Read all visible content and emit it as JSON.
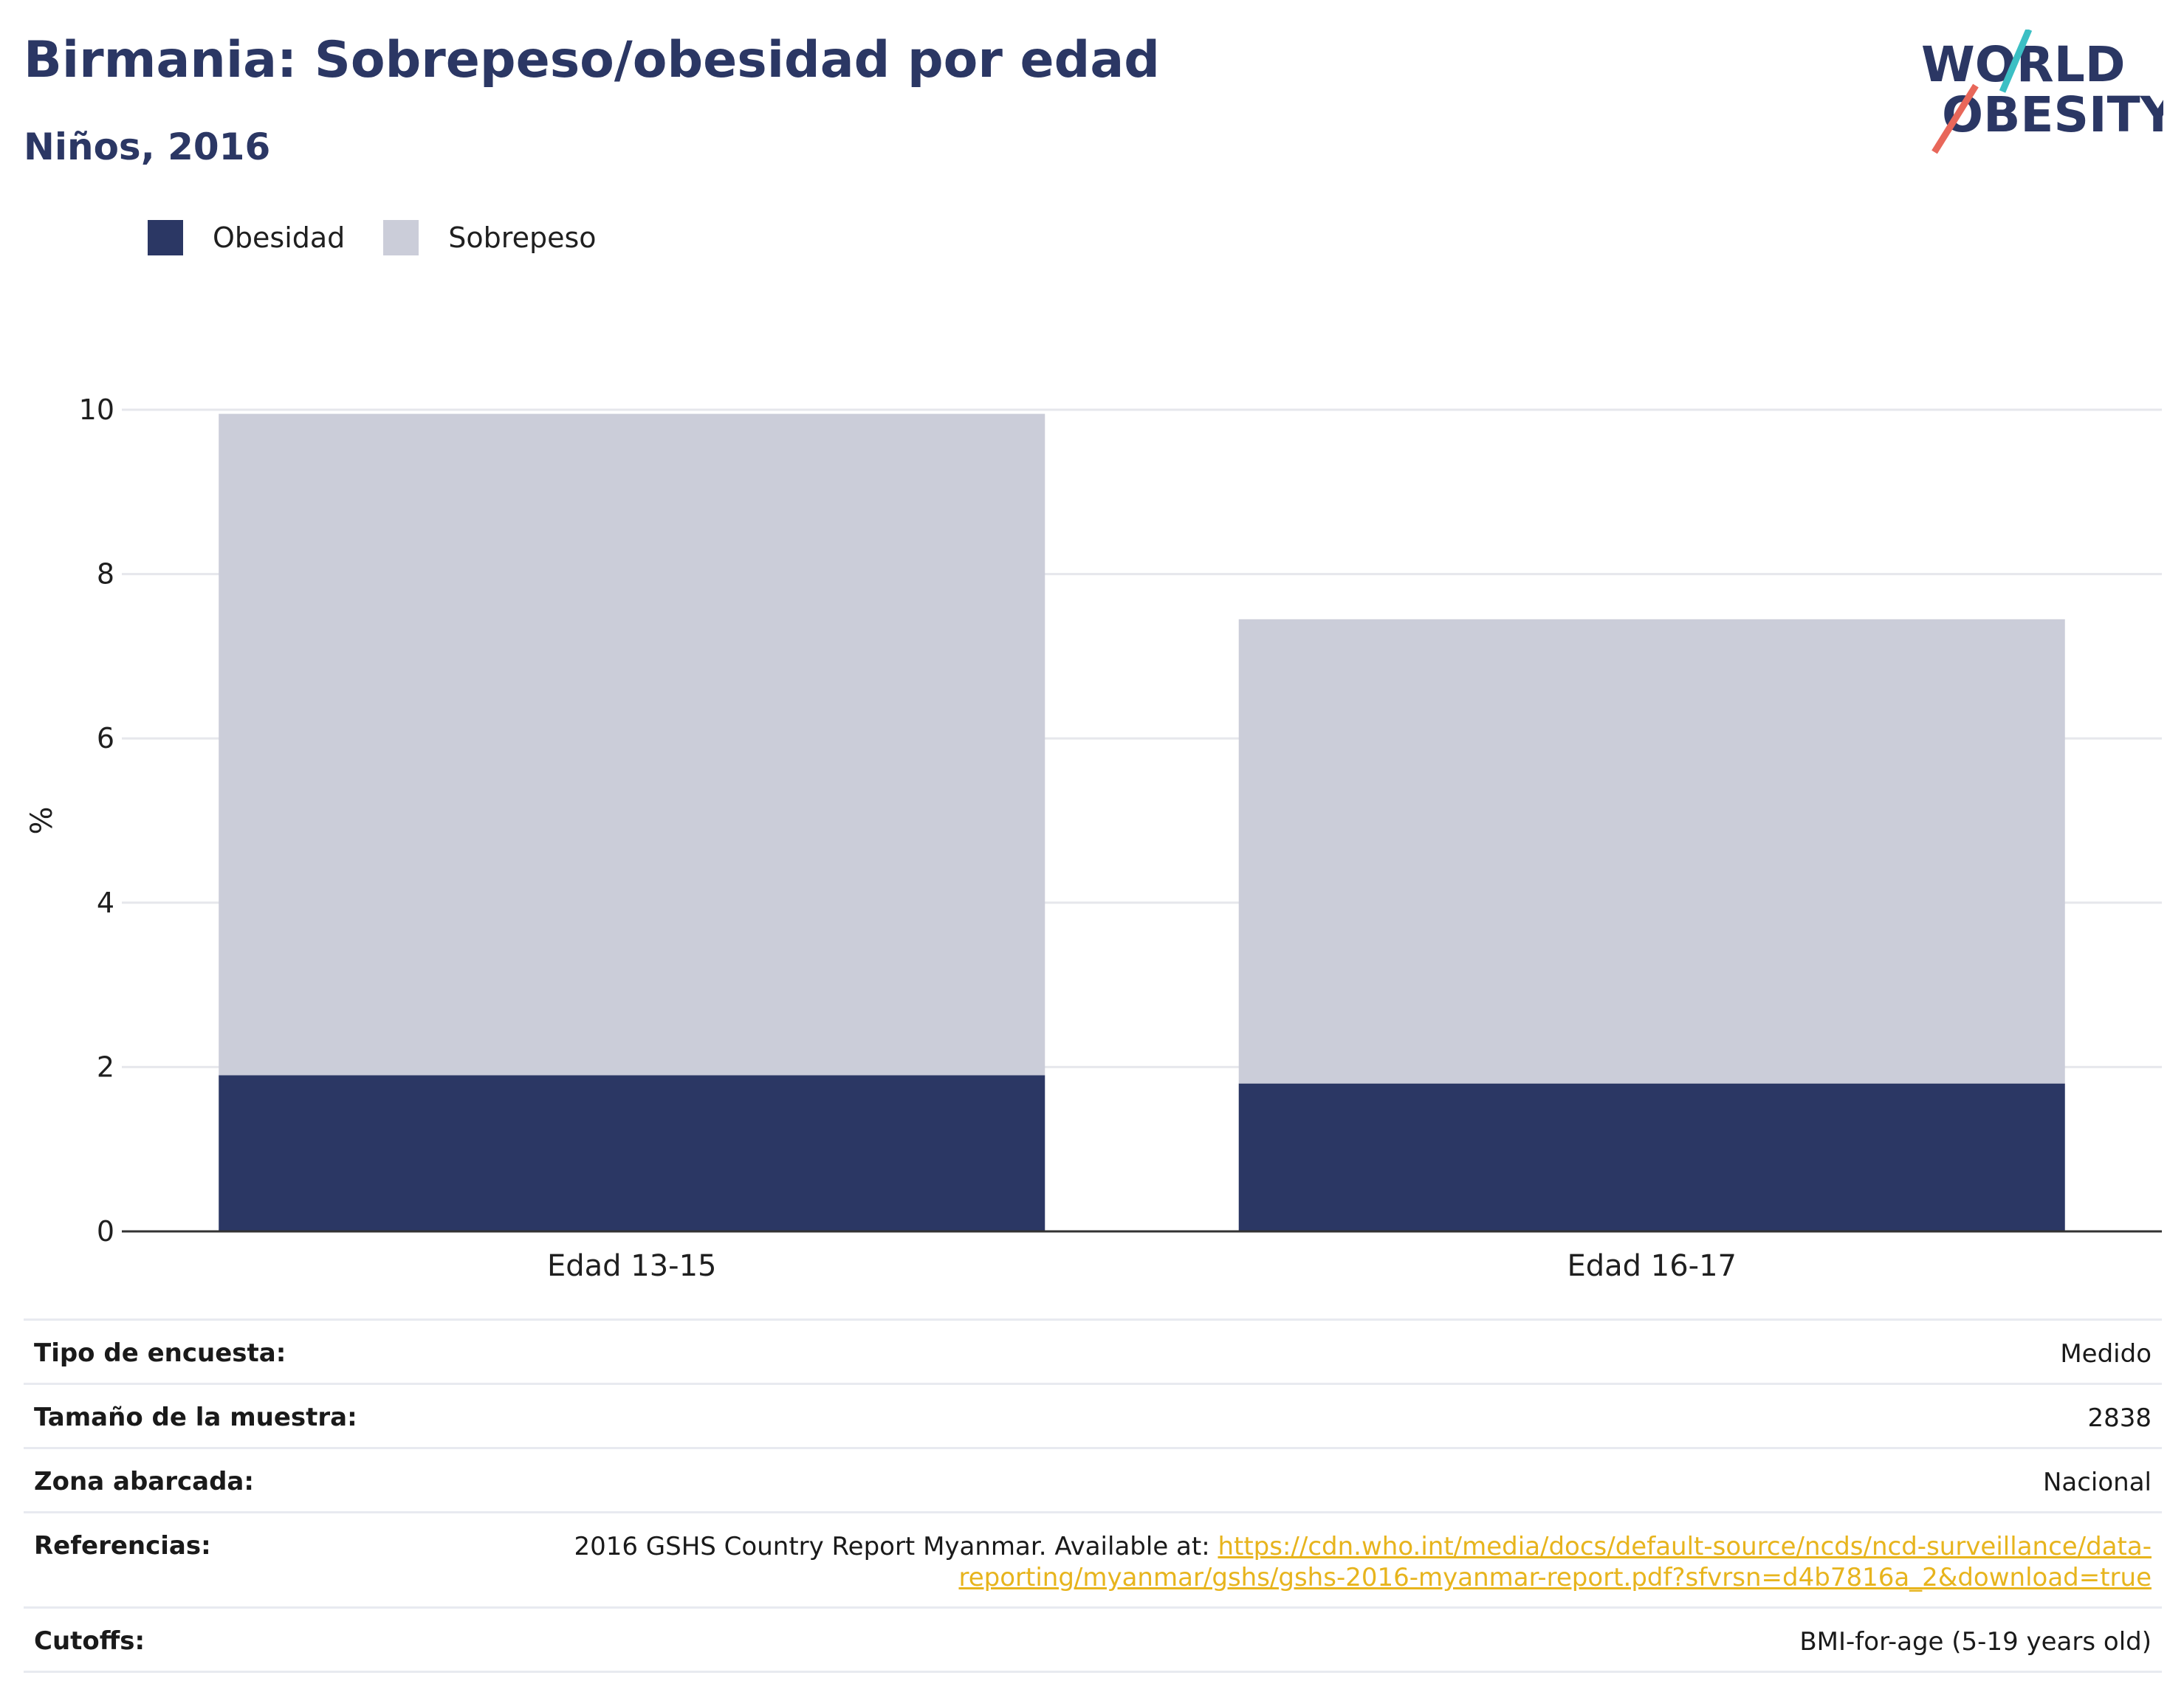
{
  "header": {
    "title": "Birmania: Sobrepeso/obesidad por edad",
    "subtitle": "Niños, 2016"
  },
  "logo": {
    "line1": "WORLD",
    "line2": "OBESITY",
    "colors": {
      "text": "#2b3764",
      "teal": "#3bbfc4",
      "coral": "#e8675a"
    }
  },
  "legend": {
    "items": [
      {
        "label": "Obesidad",
        "color": "#2b3764"
      },
      {
        "label": "Sobrepeso",
        "color": "#cbcdd9"
      }
    ]
  },
  "chart_data": {
    "type": "bar",
    "stacked": true,
    "categories": [
      "Edad 13-15",
      "Edad 16-17"
    ],
    "series": [
      {
        "name": "Obesidad",
        "values": [
          1.9,
          1.8
        ],
        "color": "#2b3764"
      },
      {
        "name": "Sobrepeso",
        "values": [
          8.05,
          5.65
        ],
        "color": "#cbcdd9"
      }
    ],
    "ylabel": "%",
    "ylim": [
      0,
      10
    ],
    "yticks": [
      0,
      2,
      4,
      6,
      8,
      10
    ],
    "grid": true,
    "legend_position": "top-left"
  },
  "info": {
    "survey_type": {
      "label": "Tipo de encuesta:",
      "value": "Medido"
    },
    "sample_size": {
      "label": "Tamaño de la muestra:",
      "value": "2838"
    },
    "area": {
      "label": "Zona abarcada:",
      "value": "Nacional"
    },
    "references": {
      "label": "Referencias:",
      "text": "2016 GSHS Country Report Myanmar. Available at: ",
      "link": "https://cdn.who.int/media/docs/default-source/ncds/ncd-surveillance/data-reporting/myanmar/gshs/gshs-2016-myanmar-report.pdf?sfvrsn=d4b7816a_2&download=true"
    },
    "cutoffs": {
      "label": "Cutoffs:",
      "value": "BMI-for-age (5-19 years old)"
    }
  }
}
